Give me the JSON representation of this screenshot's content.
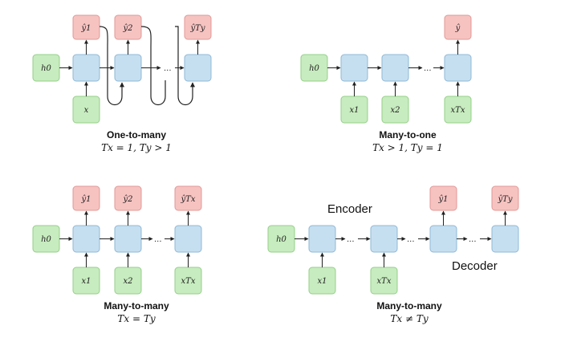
{
  "panels": [
    {
      "title": "One-to-many",
      "subtitle": "Tx = 1, Ty > 1",
      "h0": "h0",
      "x": "x",
      "y1": "ŷ1",
      "y2": "ŷ2",
      "yT": "ŷTy",
      "dots": "..."
    },
    {
      "title": "Many-to-one",
      "subtitle": "Tx > 1, Ty = 1",
      "h0": "h0",
      "x1": "x1",
      "x2": "x2",
      "xT": "xTx",
      "y": "ŷ",
      "dots": "..."
    },
    {
      "title": "Many-to-many",
      "subtitle": "Tx = Ty",
      "h0": "h0",
      "x1": "x1",
      "x2": "x2",
      "xT": "xTx",
      "y1": "ŷ1",
      "y2": "ŷ2",
      "yT": "ŷTx",
      "dots": "..."
    },
    {
      "title": "Many-to-many",
      "subtitle": "Tx ≠ Ty",
      "encoder": "Encoder",
      "decoder": "Decoder",
      "h0": "h0",
      "x1": "x1",
      "xT": "xTx",
      "y1": "ŷ1",
      "yT": "ŷTy",
      "dots": "..."
    }
  ],
  "colors": {
    "hidden": "#c6dff0",
    "input": "#c7ecbf",
    "output": "#f6c3c1"
  }
}
